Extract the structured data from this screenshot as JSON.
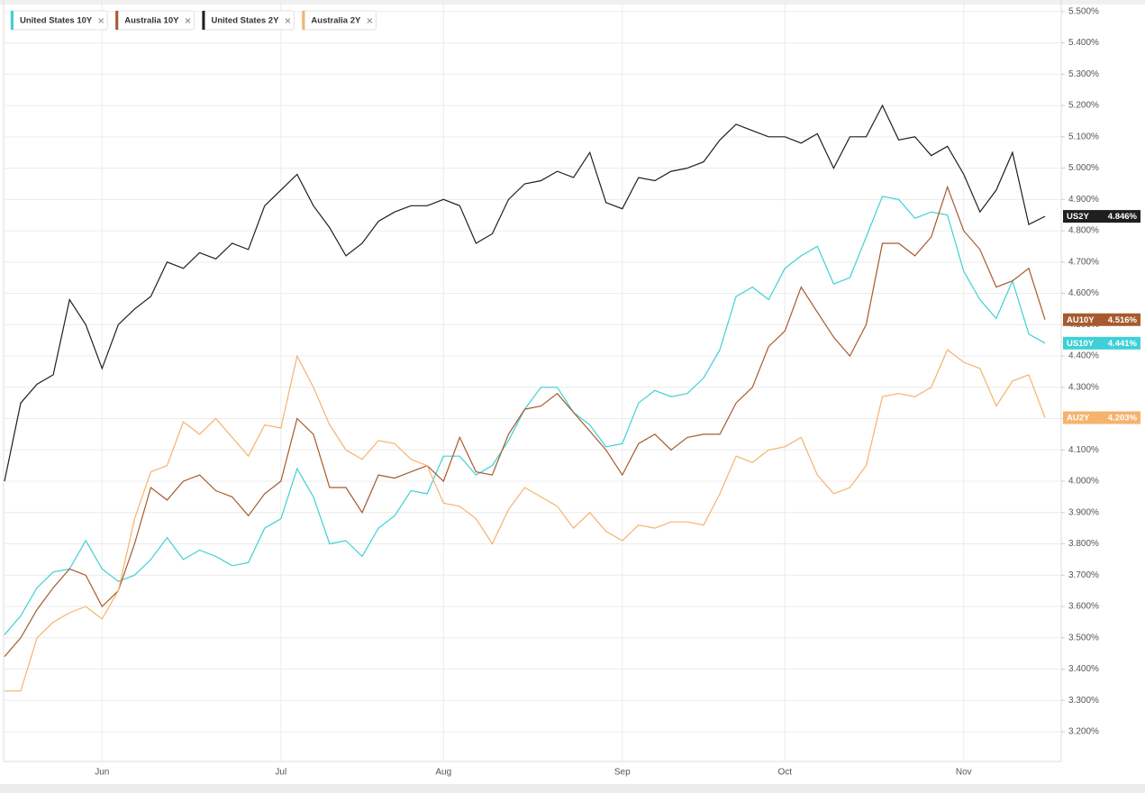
{
  "chart_data": {
    "type": "line",
    "categories": [
      null,
      null,
      null,
      null,
      null,
      null,
      "Jun",
      null,
      null,
      null,
      null,
      null,
      null,
      null,
      null,
      null,
      null,
      "Jul",
      null,
      null,
      null,
      null,
      null,
      null,
      null,
      null,
      null,
      "Aug",
      null,
      null,
      null,
      null,
      null,
      null,
      null,
      null,
      null,
      null,
      "Sep",
      null,
      null,
      null,
      null,
      null,
      null,
      null,
      null,
      null,
      "Oct",
      null,
      null,
      null,
      null,
      null,
      null,
      null,
      null,
      null,
      null,
      "Nov",
      null,
      null,
      null,
      null,
      null
    ],
    "ylim": [
      3.105,
      5.537
    ],
    "yticks": [
      {
        "value": 3.2,
        "label": "3.200%"
      },
      {
        "value": 3.3,
        "label": "3.300%"
      },
      {
        "value": 3.4,
        "label": "3.400%"
      },
      {
        "value": 3.5,
        "label": "3.500%"
      },
      {
        "value": 3.6,
        "label": "3.600%"
      },
      {
        "value": 3.7,
        "label": "3.700%"
      },
      {
        "value": 3.8,
        "label": "3.800%"
      },
      {
        "value": 3.9,
        "label": "3.900%"
      },
      {
        "value": 4.0,
        "label": "4.000%"
      },
      {
        "value": 4.1,
        "label": "4.100%"
      },
      {
        "value": 4.2,
        "label": "4.200%"
      },
      {
        "value": 4.3,
        "label": "4.300%"
      },
      {
        "value": 4.4,
        "label": "4.400%"
      },
      {
        "value": 4.5,
        "label": "4.500%"
      },
      {
        "value": 4.6,
        "label": "4.600%"
      },
      {
        "value": 4.7,
        "label": "4.700%"
      },
      {
        "value": 4.8,
        "label": "4.800%"
      },
      {
        "value": 4.9,
        "label": "4.900%"
      },
      {
        "value": 5.0,
        "label": "5.000%"
      },
      {
        "value": 5.1,
        "label": "5.100%"
      },
      {
        "value": 5.2,
        "label": "5.200%"
      },
      {
        "value": 5.3,
        "label": "5.300%"
      },
      {
        "value": 5.4,
        "label": "5.400%"
      },
      {
        "value": 5.5,
        "label": "5.500%"
      }
    ],
    "grid": true,
    "series": [
      {
        "name": "United States 10Y",
        "color": "#3fd0d6",
        "end_tag": "US10Y",
        "end_value_label": "4.441%",
        "values": [
          3.51,
          3.57,
          3.66,
          3.71,
          3.72,
          3.81,
          3.72,
          3.68,
          3.7,
          3.75,
          3.82,
          3.75,
          3.78,
          3.76,
          3.73,
          3.74,
          3.85,
          3.88,
          4.04,
          3.95,
          3.8,
          3.81,
          3.76,
          3.85,
          3.89,
          3.97,
          3.96,
          4.08,
          4.08,
          4.02,
          4.05,
          4.13,
          4.23,
          4.3,
          4.3,
          4.22,
          4.18,
          4.11,
          4.12,
          4.25,
          4.29,
          4.27,
          4.28,
          4.33,
          4.42,
          4.59,
          4.62,
          4.58,
          4.68,
          4.72,
          4.75,
          4.63,
          4.65,
          4.78,
          4.91,
          4.9,
          4.84,
          4.86,
          4.85,
          4.67,
          4.58,
          4.52,
          4.64,
          4.47,
          4.441
        ]
      },
      {
        "name": "Australia 10Y",
        "color": "#a65a2e",
        "end_tag": "AU10Y",
        "end_value_label": "4.516%",
        "values": [
          3.44,
          3.5,
          3.59,
          3.66,
          3.72,
          3.7,
          3.6,
          3.65,
          3.8,
          3.98,
          3.94,
          4.0,
          4.02,
          3.97,
          3.95,
          3.89,
          3.96,
          4.0,
          4.2,
          4.15,
          3.98,
          3.98,
          3.9,
          4.02,
          4.01,
          4.03,
          4.05,
          4.0,
          4.14,
          4.03,
          4.02,
          4.15,
          4.23,
          4.24,
          4.28,
          4.22,
          4.16,
          4.1,
          4.02,
          4.12,
          4.15,
          4.1,
          4.14,
          4.15,
          4.15,
          4.25,
          4.3,
          4.43,
          4.48,
          4.62,
          4.54,
          4.46,
          4.4,
          4.5,
          4.76,
          4.76,
          4.72,
          4.78,
          4.94,
          4.8,
          4.74,
          4.62,
          4.64,
          4.68,
          4.516
        ]
      },
      {
        "name": "United States 2Y",
        "color": "#1f1f1f",
        "end_tag": "US2Y",
        "end_value_label": "4.846%",
        "values": [
          4.0,
          4.25,
          4.31,
          4.34,
          4.58,
          4.5,
          4.36,
          4.5,
          4.55,
          4.59,
          4.7,
          4.68,
          4.73,
          4.71,
          4.76,
          4.74,
          4.88,
          4.93,
          4.98,
          4.88,
          4.81,
          4.72,
          4.76,
          4.83,
          4.86,
          4.88,
          4.88,
          4.9,
          4.88,
          4.76,
          4.79,
          4.9,
          4.95,
          4.96,
          4.99,
          4.97,
          5.05,
          4.89,
          4.87,
          4.97,
          4.96,
          4.99,
          5.0,
          5.02,
          5.09,
          5.14,
          5.12,
          5.1,
          5.1,
          5.08,
          5.11,
          5.0,
          5.1,
          5.1,
          5.2,
          5.09,
          5.1,
          5.04,
          5.07,
          4.98,
          4.86,
          4.93,
          5.05,
          4.82,
          4.846
        ]
      },
      {
        "name": "Australia 2Y",
        "color": "#f5b36e",
        "end_tag": "AU2Y",
        "end_value_label": "4.203%",
        "values": [
          3.33,
          3.33,
          3.5,
          3.55,
          3.58,
          3.6,
          3.56,
          3.65,
          3.88,
          4.03,
          4.05,
          4.19,
          4.15,
          4.2,
          4.14,
          4.08,
          4.18,
          4.17,
          4.4,
          4.3,
          4.18,
          4.1,
          4.07,
          4.13,
          4.12,
          4.07,
          4.05,
          3.93,
          3.92,
          3.88,
          3.8,
          3.91,
          3.98,
          3.95,
          3.92,
          3.85,
          3.9,
          3.84,
          3.81,
          3.86,
          3.85,
          3.87,
          3.87,
          3.86,
          3.96,
          4.08,
          4.06,
          4.1,
          4.11,
          4.14,
          4.02,
          3.96,
          3.98,
          4.05,
          4.27,
          4.28,
          4.27,
          4.3,
          4.42,
          4.38,
          4.36,
          4.24,
          4.32,
          4.34,
          4.203
        ]
      }
    ]
  }
}
